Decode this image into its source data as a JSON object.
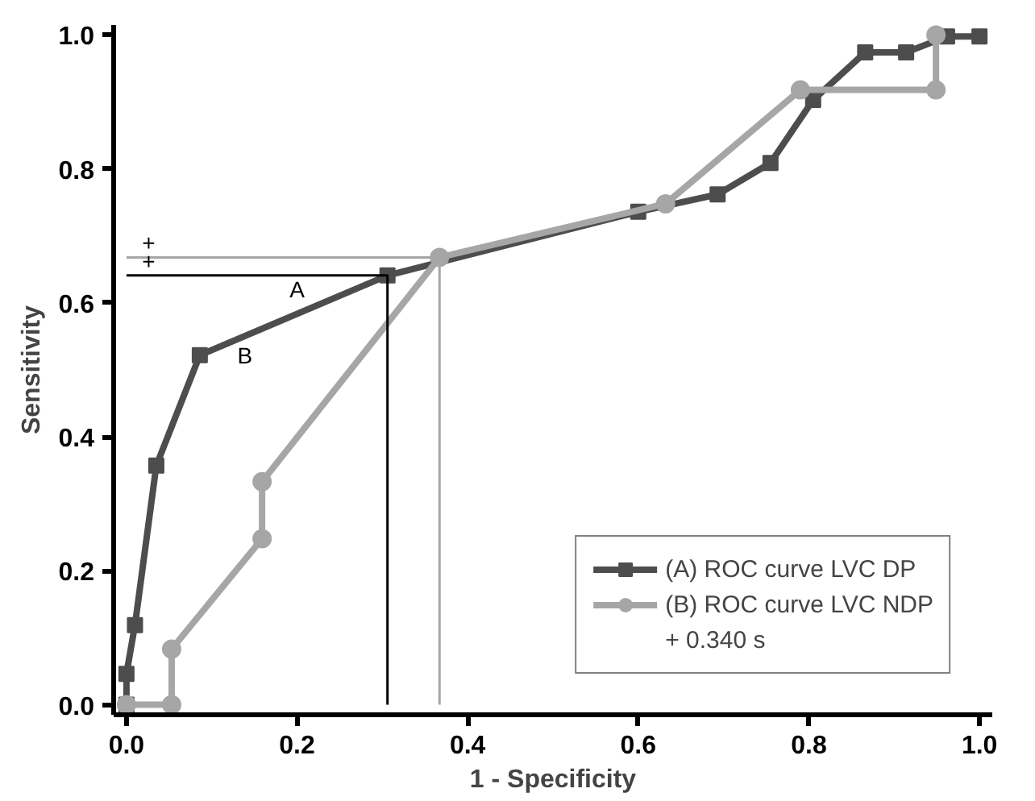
{
  "chart_data": {
    "type": "line",
    "xlabel": "1 - Specificity",
    "ylabel": "Sensitivity",
    "xlim": [
      -0.015,
      1.015
    ],
    "ylim": [
      -0.015,
      1.015
    ],
    "xticks": [
      {
        "value": 0,
        "label": "0.0"
      },
      0.2,
      0.4,
      0.6,
      0.8,
      {
        "value": 1,
        "label": "1.0"
      }
    ],
    "yticks": [
      {
        "value": 0,
        "label": "0.0"
      },
      0.2,
      0.4,
      0.6,
      0.8,
      {
        "value": 1,
        "label": "1.0"
      }
    ],
    "grid": false,
    "legend": "bottom right",
    "series": [
      {
        "name": "(A) ROC curve LVC DP",
        "color": "#4d4d4d",
        "marker": "square",
        "x": [
          0,
          0,
          0.01,
          0.035,
          0.086,
          0.306,
          0.6,
          0.693,
          0.755,
          0.805,
          0.866,
          0.914,
          0.962,
          1.0
        ],
        "values": [
          0,
          0.046,
          0.119,
          0.357,
          0.522,
          0.641,
          0.736,
          0.762,
          0.809,
          0.903,
          0.974,
          0.974,
          0.998,
          0.998
        ]
      },
      {
        "name": "(B) ROC curve LVC NDP",
        "color": "#a6a6a6",
        "marker": "circle",
        "x": [
          0,
          0.053,
          0.053,
          0.159,
          0.159,
          0.367,
          0.632,
          0.79,
          0.949,
          0.949
        ],
        "values": [
          0,
          0,
          0.083,
          0.248,
          0.333,
          0.668,
          0.748,
          0.918,
          0.918,
          1.0
        ]
      },
      {
        "color": "#000000",
        "marker": "none",
        "x": [
          0,
          0.306,
          0.306
        ],
        "values": [
          0.641,
          0.641,
          0
        ]
      },
      {
        "color": "#a6a6a6",
        "marker": "none",
        "x": [
          0,
          0.367,
          0.367
        ],
        "values": [
          0.668,
          0.668,
          0
        ]
      }
    ],
    "annotations": [
      {
        "text": "A",
        "x": 0.2,
        "y": 0.587
      },
      {
        "text": "B",
        "x": 0.086,
        "y": 0.522
      },
      {
        "text": "+",
        "x": 0.026,
        "y": 0.668
      },
      {
        "text": "+",
        "x": 0.026,
        "y": 0.641
      },
      "+ 0.340 s"
    ]
  }
}
